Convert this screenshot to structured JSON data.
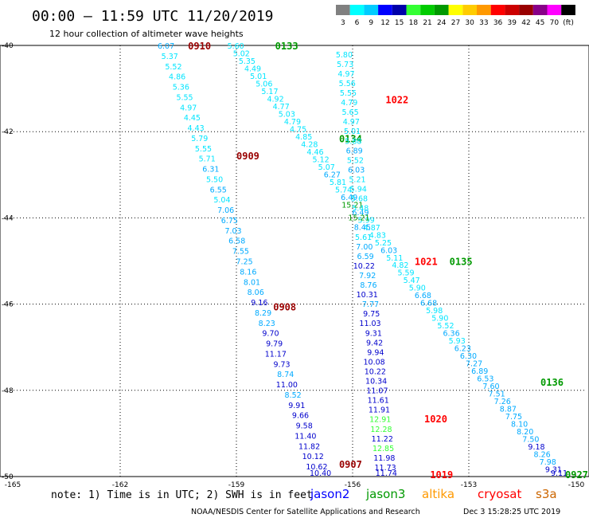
{
  "header": {
    "title": "00:00 — 11:59 UTC 11/20/2019",
    "subtitle": "12 hour collection of altimeter wave heights"
  },
  "colorbar": {
    "labels": [
      "3",
      "6",
      "9",
      "12",
      "15",
      "18",
      "21",
      "24",
      "27",
      "30",
      "33",
      "36",
      "39",
      "42",
      "45",
      "70",
      "(ft)"
    ],
    "colors": [
      "#808080",
      "#00ffff",
      "#00ccff",
      "#0000ff",
      "#0000aa",
      "#33ff33",
      "#00cc00",
      "#009900",
      "#ffff00",
      "#ffcc00",
      "#ff9900",
      "#ff0000",
      "#cc0000",
      "#990000",
      "#880088",
      "#ff00ff",
      "#000000"
    ]
  },
  "footer": {
    "note": "note: 1) Time is in UTC; 2) SWH is in feet",
    "credit": "NOAA/NESDIS Center for Satellite Applications and Research",
    "stamp": "Dec  3 15:28:25 UTC 2019",
    "satellites": [
      {
        "name": "jason2",
        "color": "#0000ff"
      },
      {
        "name": "jason3",
        "color": "#009900"
      },
      {
        "name": "altika",
        "color": "#ff9900"
      },
      {
        "name": "cryosat",
        "color": "#ff0000"
      },
      {
        "name": "s3a",
        "color": "#cc6600"
      }
    ]
  },
  "chart_data": {
    "type": "scatter",
    "xlim": [
      -165,
      -150
    ],
    "ylim": [
      -50,
      -40
    ],
    "x_ticks": [
      -165,
      -162,
      -159,
      -156,
      -153,
      -150
    ],
    "x_tick_labels": [
      "-165",
      "-162",
      "-159",
      "-156",
      "-153",
      "-150"
    ],
    "y_ticks": [
      -40,
      -42,
      -44,
      -46,
      -48,
      -50
    ],
    "y_tick_labels": [
      "-40",
      "-42",
      "-44",
      "-46",
      "-48",
      "-50"
    ],
    "grid": true,
    "value_colors": {
      "3-6": "#00ffff",
      "6-9": "#00ccff",
      "9-12": "#0000ff",
      "12-15": "#33ff33",
      "15-18": "#00cc00"
    },
    "tracks": [
      {
        "x0": -160.6,
        "y0": -40.0,
        "x1": -156.55,
        "y1": -50.0,
        "values": [
          "6.07",
          "5.37",
          "5.52",
          "4.86",
          "5.36",
          "5.55",
          "4.97",
          "4.45",
          "4.43",
          "5.79",
          "5.55",
          "5.71",
          "6.31",
          "5.50",
          "6.55",
          "5.04",
          "7.06",
          "6.75",
          "7.03",
          "6.58",
          "7.55",
          "7.25",
          "8.16",
          "8.01",
          "8.06",
          "9.16",
          "8.29",
          "8.23",
          "9.70",
          "9.79",
          "11.17",
          "9.73",
          "8.74",
          "11.00",
          "8.52",
          "9.91",
          "9.66",
          "9.58",
          "11.40",
          "11.82",
          "10.12",
          "10.62",
          "10.40"
        ],
        "times": [
          {
            "text": "0910",
            "x": -160.25,
            "y": -40.0,
            "color": "#990000"
          },
          {
            "text": "0909",
            "x": -159.0,
            "y": -42.55,
            "color": "#990000"
          },
          {
            "text": "0908",
            "x": -158.05,
            "y": -46.05,
            "color": "#990000"
          },
          {
            "text": "0907",
            "x": -156.35,
            "y": -49.7,
            "color": "#990000"
          }
        ]
      },
      {
        "x0": -158.8,
        "y0": -40.0,
        "x1": -150.45,
        "y1": -50.0,
        "values": [
          "5.60",
          "5.02",
          "5.35",
          "4.49",
          "5.01",
          "5.06",
          "5.17",
          "4.92",
          "4.77",
          "5.03",
          "4.79",
          "4.75",
          "4.85",
          "4.28",
          "4.46",
          "5.12",
          "5.07",
          "6.27",
          "5.81",
          "5.74",
          "6.49",
          "15.21",
          "6.49",
          "5.99",
          "4.87",
          "4.83",
          "5.25",
          "6.03",
          "5.11",
          "4.82",
          "5.59",
          "5.47",
          "5.90",
          "6.68",
          "6.68",
          "5.98",
          "5.90",
          "5.52",
          "6.36",
          "5.93",
          "6.23",
          "6.30",
          "7.27",
          "6.89",
          "6.53",
          "7.60",
          "7.51",
          "7.26",
          "8.87",
          "7.75",
          "8.10",
          "8.20",
          "7.50",
          "9.18",
          "8.26",
          "7.98",
          "9.31",
          "9.11"
        ],
        "times": [
          {
            "text": "0133",
            "x": -158.0,
            "y": -40.0,
            "color": "#009900"
          },
          {
            "text": "0134",
            "x": -156.35,
            "y": -42.15,
            "color": "#009900"
          },
          {
            "text": "0135",
            "x": -153.5,
            "y": -45.0,
            "color": "#009900"
          },
          {
            "text": "0136",
            "x": -151.15,
            "y": -47.8,
            "color": "#009900"
          },
          {
            "text": "0927",
            "x": -150.35,
            "y": -49.95,
            "color": "#009900"
          }
        ]
      },
      {
        "x0": -156.0,
        "y0": -40.2,
        "x1": -154.85,
        "y1": -50.0,
        "values": [
          "5.80",
          "5.73",
          "4.97",
          "5.56",
          "5.55",
          "4.79",
          "5.65",
          "4.97",
          "5.01",
          "5.88",
          "6.89",
          "5.52",
          "6.03",
          "5.21",
          "5.94",
          "5.68",
          "5.48",
          "15.21",
          "8.45",
          "5.61",
          "7.00",
          "6.59",
          "10.22",
          "7.92",
          "8.76",
          "10.31",
          "7.77",
          "9.75",
          "11.03",
          "9.31",
          "9.42",
          "9.94",
          "10.08",
          "10.22",
          "10.34",
          "11.07",
          "11.61",
          "11.91",
          "12.91",
          "12.28",
          "11.22",
          "12.85",
          "11.98",
          "11.73",
          "11.74"
        ],
        "times": [
          {
            "text": "1022",
            "x": -155.15,
            "y": -41.25,
            "color": "#ff0000"
          },
          {
            "text": "1021",
            "x": -154.4,
            "y": -45.0,
            "color": "#ff0000"
          },
          {
            "text": "1020",
            "x": -154.15,
            "y": -48.65,
            "color": "#ff0000"
          },
          {
            "text": "1019",
            "x": -154.0,
            "y": -50.0,
            "color": "#ff0000"
          }
        ]
      }
    ]
  }
}
